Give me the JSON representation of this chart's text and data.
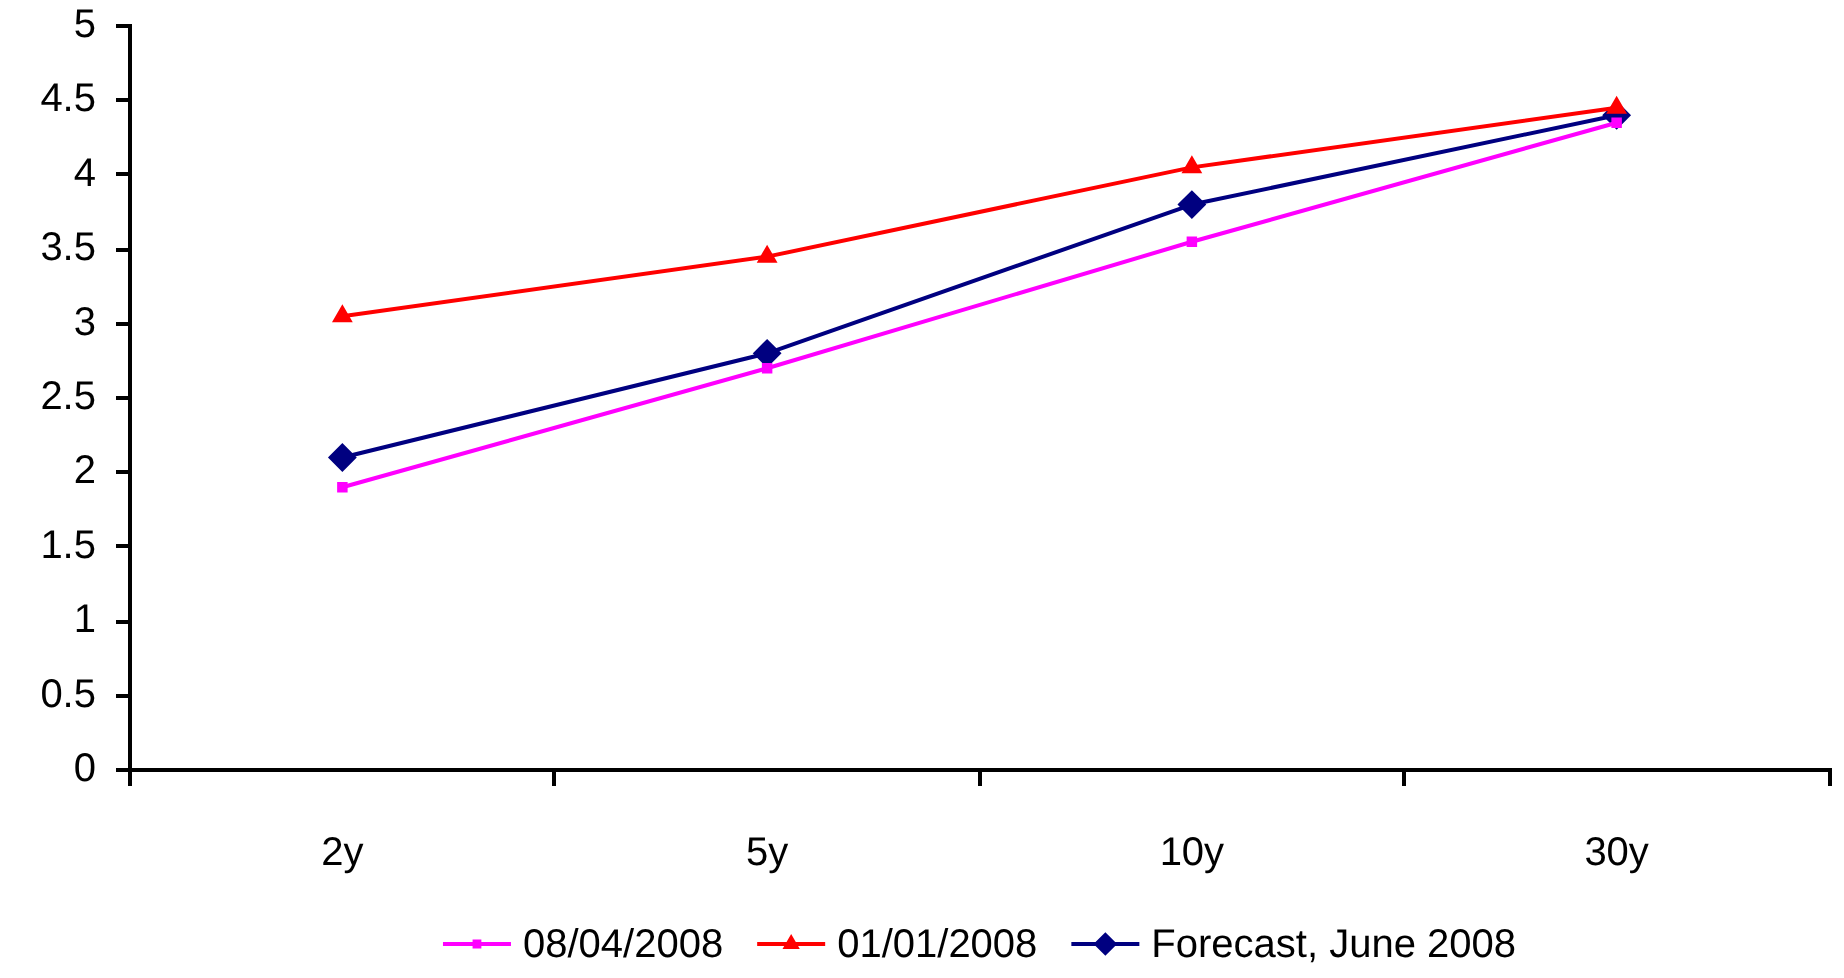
{
  "chart_data": {
    "type": "line",
    "categories": [
      "2y",
      "5y",
      "10y",
      "30y"
    ],
    "series": [
      {
        "name": "08/04/2008",
        "color": "#ff00ff",
        "marker": "square",
        "values": [
          1.9,
          2.7,
          3.55,
          4.35
        ]
      },
      {
        "name": "01/01/2008",
        "color": "#ff0000",
        "marker": "triangle",
        "values": [
          3.05,
          3.45,
          4.05,
          4.45
        ]
      },
      {
        "name": "Forecast, June 2008",
        "color": "#000080",
        "marker": "diamond",
        "values": [
          2.1,
          2.8,
          3.8,
          4.4
        ]
      }
    ],
    "ylim": [
      0,
      5
    ],
    "yticks": [
      0,
      0.5,
      1,
      1.5,
      2,
      2.5,
      3,
      3.5,
      4,
      4.5,
      5
    ],
    "legend": "bottom",
    "line_style": "solid"
  }
}
